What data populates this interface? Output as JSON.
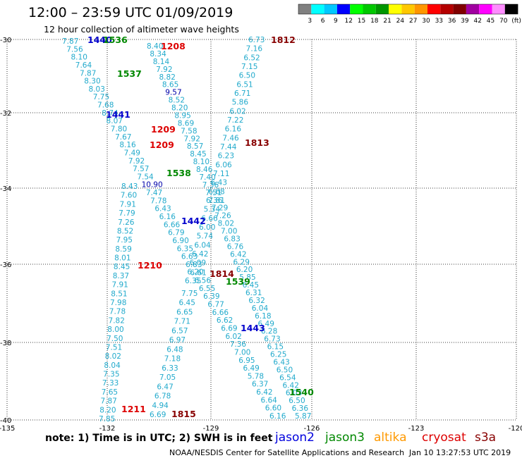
{
  "title": "12:00 – 23:59 UTC 01/09/2019",
  "subtitle": "12 hour collection of altimeter wave heights",
  "legend": {
    "labels": [
      "3",
      "6",
      "9",
      "12",
      "15",
      "18",
      "21",
      "24",
      "27",
      "30",
      "33",
      "36",
      "39",
      "42",
      "45",
      "70",
      "(ft)"
    ],
    "colors": [
      "#808080",
      "#00ffff",
      "#00c8ff",
      "#0000ff",
      "#00ff00",
      "#00c800",
      "#009600",
      "#ffff00",
      "#ffc800",
      "#ff9600",
      "#ff0000",
      "#b40000",
      "#800000",
      "#a000a0",
      "#ff00ff",
      "#ff8cff",
      "#000000"
    ]
  },
  "axes": {
    "lat_labels": [
      "-30",
      "-32",
      "-34",
      "-36",
      "-38",
      "-40"
    ],
    "lon_labels": [
      "-135",
      "-132",
      "-129",
      "-126",
      "-123",
      "-120"
    ]
  },
  "footer": {
    "note": "note:  1) Time is in UTC;  2) SWH is in feet",
    "satellites": [
      {
        "name": "jason2",
        "color": "#0000dd"
      },
      {
        "name": "jason3",
        "color": "#008800"
      },
      {
        "name": "altika",
        "color": "#ff9900"
      },
      {
        "name": "cryosat",
        "color": "#dd0000"
      },
      {
        "name": "s3a",
        "color": "#880000"
      }
    ],
    "credit": "NOAA/NESDIS Center for Satellite Applications and Research",
    "timestamp": "Jan 10 13:27:53 UTC 2019"
  },
  "time_labels": [
    {
      "t": "1440",
      "c": "#0000cc"
    },
    {
      "t": "1536",
      "c": "#008800"
    },
    {
      "t": "1208",
      "c": "#dd0000"
    },
    {
      "t": "1812",
      "c": "#880000"
    },
    {
      "t": "1537",
      "c": "#008800"
    },
    {
      "t": "1441",
      "c": "#0000cc"
    },
    {
      "t": "1209",
      "c": "#dd0000"
    },
    {
      "t": "1813",
      "c": "#880000"
    },
    {
      "t": "1209",
      "c": "#dd0000"
    },
    {
      "t": "1538",
      "c": "#008800"
    },
    {
      "t": "1442",
      "c": "#0000cc"
    },
    {
      "t": "1210",
      "c": "#dd0000"
    },
    {
      "t": "1814",
      "c": "#880000"
    },
    {
      "t": "1539",
      "c": "#008800"
    },
    {
      "t": "1443",
      "c": "#0000cc"
    },
    {
      "t": "1540",
      "c": "#008800"
    },
    {
      "t": "1211",
      "c": "#dd0000"
    },
    {
      "t": "1815",
      "c": "#880000"
    }
  ],
  "tracks": {
    "cryosat_1208": [
      "8.40",
      "8.34",
      "8.14",
      "7.92",
      "8.82",
      "8.65",
      "9.57",
      "8.52",
      "8.20",
      "8.95",
      "8.69",
      "7.58",
      "7.92",
      "8.57",
      "8.45",
      "8.10",
      "8.46",
      "7.40",
      "7.36",
      "7.51",
      "7.81",
      "7.29",
      "7.26",
      "8.02",
      "7.00",
      "6.83",
      "6.76",
      "6.42",
      "6.29",
      "6.20",
      "5.85",
      "6.45",
      "6.31",
      "6.32",
      "6.04",
      "6.18",
      "6.49",
      "6.28",
      "6.73",
      "6.15",
      "6.25",
      "6.43",
      "6.50",
      "6.54",
      "6.42",
      "6.03",
      "6.50",
      "6.36",
      "5.87"
    ],
    "cryosat_1210": [
      "8.43",
      "7.60",
      "7.91",
      "7.79",
      "7.26",
      "8.52",
      "7.95",
      "8.59",
      "8.01",
      "8.45",
      "8.37",
      "7.91",
      "8.51",
      "7.98",
      "7.78",
      "7.82",
      "8.00",
      "7.50",
      "7.51",
      "8.02",
      "8.04",
      "7.35",
      "7.33",
      "7.65",
      "7.87",
      "8.20",
      "7.85"
    ],
    "s3a_1812": [
      "6.73",
      "7.16",
      "6.52",
      "7.15",
      "6.50",
      "6.51",
      "6.71",
      "5.86",
      "6.02",
      "7.22",
      "6.16",
      "7.46",
      "7.44",
      "6.23",
      "6.06",
      "7.11",
      "6.43",
      "6.68",
      "6.36",
      "5.34",
      "6.66",
      "6.00",
      "5.74",
      "6.04",
      "6.42",
      "6.09",
      "6.20",
      "6.35"
    ],
    "s3a_1814": [
      "7.75",
      "6.45",
      "6.65",
      "7.71",
      "6.57",
      "6.97",
      "6.48",
      "7.18",
      "6.33",
      "7.05",
      "6.47",
      "6.78",
      "4.94",
      "6.69"
    ],
    "jason_1440": [
      "7.87",
      "7.56",
      "8.10",
      "7.64",
      "7.87",
      "8.30",
      "8.03",
      "7.75",
      "7.68",
      "8.74",
      "8.07",
      "7.80",
      "7.67",
      "8.16",
      "7.49",
      "7.92",
      "7.57",
      "7.54",
      "10.90",
      "7.47",
      "7.78",
      "6.43",
      "6.16",
      "6.66",
      "6.79",
      "6.90",
      "6.35",
      "6.63",
      "6.83",
      "6.61",
      "6.56",
      "6.55",
      "6.39",
      "6.77",
      "6.66",
      "6.62",
      "6.69",
      "6.02",
      "7.36",
      "7.00",
      "6.95",
      "6.49",
      "5.78",
      "6.37",
      "6.42",
      "6.64",
      "6.60",
      "6.16"
    ]
  }
}
